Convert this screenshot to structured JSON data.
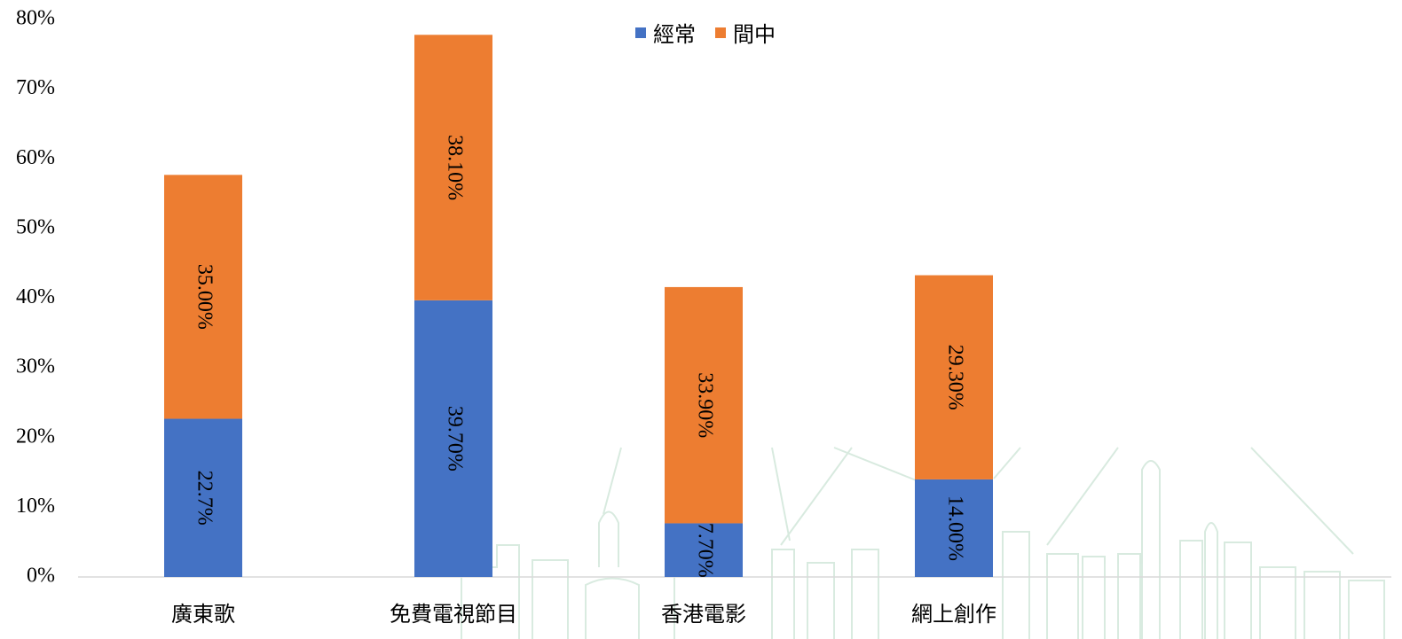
{
  "chart_data": {
    "type": "stacked_bar",
    "categories": [
      "廣東歌",
      "免費電視節目",
      "香港電影",
      "網上創作"
    ],
    "series": [
      {
        "name": "經常",
        "color": "#4472c4",
        "values": [
          22.7,
          39.7,
          7.7,
          14.0
        ],
        "value_labels": [
          "22.7%",
          "39.70%",
          "7.70%",
          "14.00%"
        ]
      },
      {
        "name": "間中",
        "color": "#ed7d31",
        "values": [
          35.0,
          38.1,
          33.9,
          29.3
        ],
        "value_labels": [
          "35.00%",
          "38.10%",
          "33.90%",
          "29.30%"
        ]
      }
    ],
    "ylim": [
      0,
      80
    ],
    "yticks": [
      {
        "value": 0,
        "label": "0%"
      },
      {
        "value": 10,
        "label": "10%"
      },
      {
        "value": 20,
        "label": "20%"
      },
      {
        "value": 30,
        "label": "30%"
      },
      {
        "value": 40,
        "label": "40%"
      },
      {
        "value": 50,
        "label": "50%"
      },
      {
        "value": 60,
        "label": "60%"
      },
      {
        "value": 70,
        "label": "70%"
      },
      {
        "value": 80,
        "label": "80%"
      }
    ],
    "legend": "top"
  }
}
